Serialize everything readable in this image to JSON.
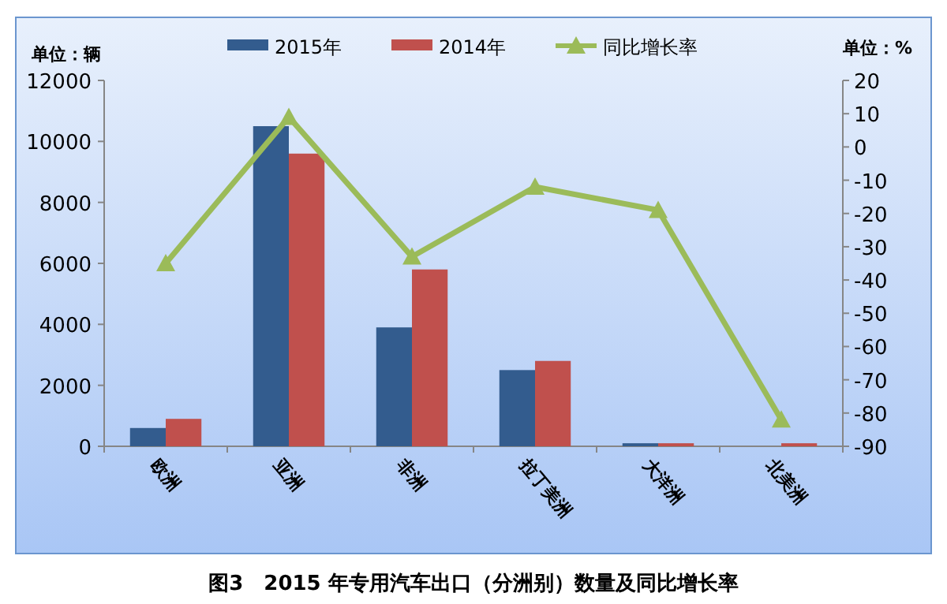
{
  "chart_data": {
    "type": "bar",
    "categories": [
      "欧洲",
      "亚洲",
      "非洲",
      "拉丁美洲",
      "大洋洲",
      "北美洲"
    ],
    "series": [
      {
        "name": "2015年",
        "color": "#335c8e",
        "values": [
          600,
          10500,
          3900,
          2500,
          100,
          0
        ]
      },
      {
        "name": "2014年",
        "color": "#c0504d",
        "values": [
          900,
          9600,
          5800,
          2800,
          100,
          100
        ]
      },
      {
        "name": "同比增长率",
        "type": "line",
        "axis": "y2",
        "color": "#9bbb59",
        "marker": "triangle",
        "values": [
          -35,
          9,
          -33,
          -12,
          -19,
          -82
        ]
      }
    ],
    "ylabel": "单位：辆",
    "y2label": "单位：%",
    "ylim": [
      0,
      12000
    ],
    "yticks": [
      0,
      2000,
      4000,
      6000,
      8000,
      10000,
      12000
    ],
    "y2lim": [
      -90,
      20
    ],
    "y2ticks": [
      -90,
      -80,
      -70,
      -60,
      -50,
      -40,
      -30,
      -20,
      -10,
      0,
      10,
      20
    ],
    "grid": false,
    "legend": "top",
    "annotations": [
      "图3　2015 年专用汽车出口（分洲别）数量及同比增长率"
    ]
  }
}
